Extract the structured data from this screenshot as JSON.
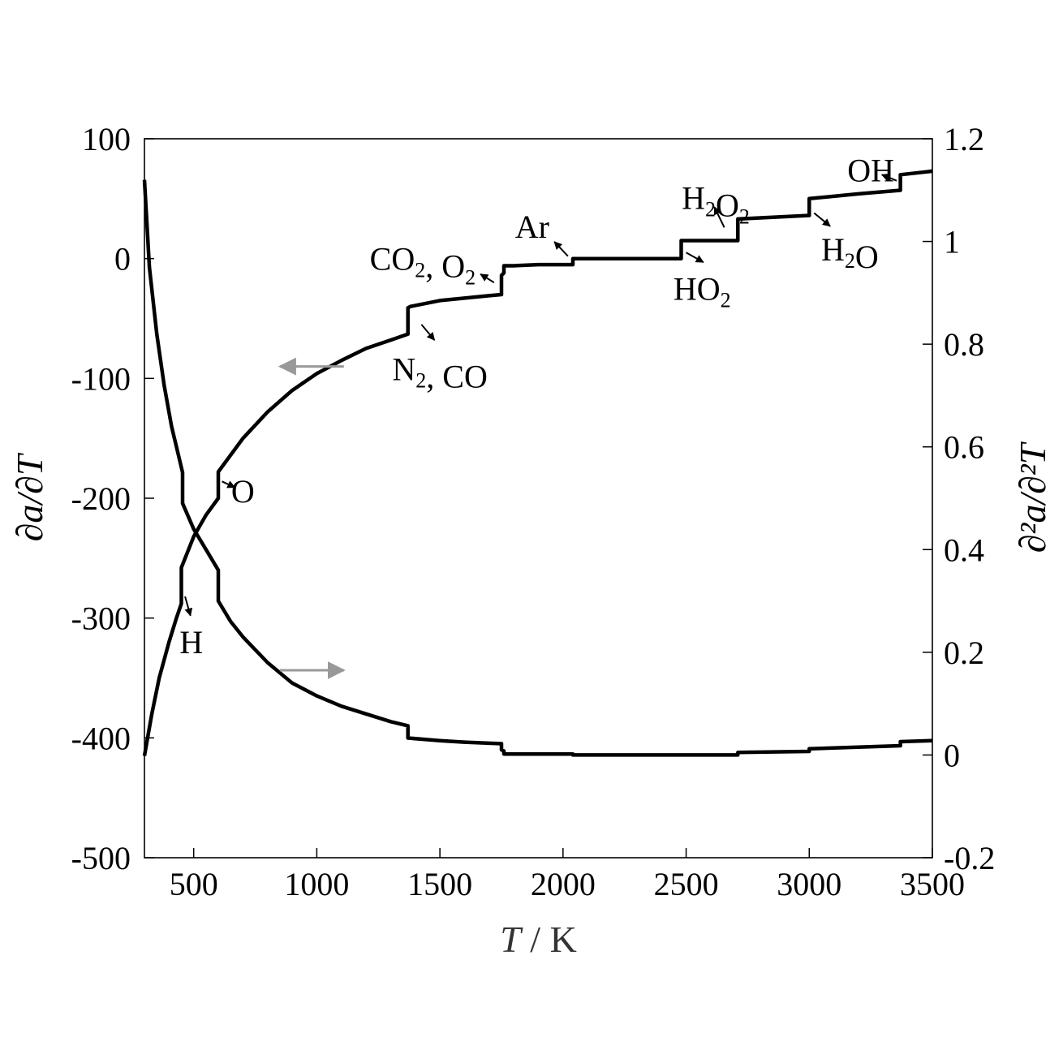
{
  "chart_data": {
    "type": "line",
    "xlabel": "T / K",
    "ylabel_left": "∂a/∂T",
    "ylabel_right": "∂²a/∂²T",
    "xlim": [
      300,
      3500
    ],
    "ylim_left": [
      -500,
      100
    ],
    "ylim_right": [
      -0.2,
      1.2
    ],
    "xticks": [
      "500",
      "1000",
      "1500",
      "2000",
      "2500",
      "3000",
      "3500"
    ],
    "yticks_left": [
      "100",
      "0",
      "-100",
      "-200",
      "-300",
      "-400",
      "-500"
    ],
    "yticks_right": [
      "1.2",
      "1",
      "0.8",
      "0.6",
      "0.4",
      "0.2",
      "0",
      "-0.2"
    ],
    "grid": false,
    "series": [
      {
        "axis": "left",
        "color": "#000000",
        "x": [
          300,
          330,
          360,
          400,
          430,
          450,
          450,
          500,
          550,
          600,
          600,
          700,
          800,
          900,
          1000,
          1100,
          1200,
          1300,
          1370,
          1370,
          1380,
          1500,
          1600,
          1700,
          1750,
          1750,
          1760,
          1760,
          1800,
          1900,
          2000,
          2040,
          2040,
          2200,
          2480,
          2480,
          2710,
          2710,
          3000,
          3000,
          3200,
          3370,
          3370,
          3500
        ],
        "y": [
          -415,
          -380,
          -350,
          -320,
          -300,
          -288,
          -258,
          -232,
          -214,
          -200,
          -178,
          -150,
          -128,
          -110,
          -96,
          -85,
          -75,
          -68,
          -63,
          -41,
          -40,
          -35,
          -33,
          -31,
          -30,
          -14,
          -12,
          -6,
          -6,
          -5,
          -5,
          -5,
          0,
          0,
          0,
          15,
          15,
          33,
          36,
          50,
          54,
          57,
          70,
          73
        ]
      },
      {
        "axis": "right",
        "color": "#000000",
        "x": [
          300,
          320,
          350,
          380,
          410,
          440,
          455,
          455,
          500,
          550,
          600,
          600,
          650,
          700,
          800,
          900,
          1000,
          1100,
          1200,
          1300,
          1370,
          1370,
          1500,
          1600,
          1700,
          1750,
          1750,
          1760,
          1760,
          2040,
          2040,
          2480,
          2710,
          2710,
          3000,
          3000,
          3370,
          3370,
          3500
        ],
        "y": [
          1.12,
          0.95,
          0.82,
          0.72,
          0.64,
          0.58,
          0.55,
          0.49,
          0.44,
          0.4,
          0.36,
          0.3,
          0.26,
          0.23,
          0.18,
          0.14,
          0.115,
          0.095,
          0.08,
          0.065,
          0.057,
          0.033,
          0.028,
          0.025,
          0.023,
          0.022,
          0.01,
          0.008,
          0.002,
          0.002,
          0.0,
          0.0,
          0.0,
          0.005,
          0.007,
          0.012,
          0.018,
          0.026,
          0.028
        ]
      }
    ],
    "direction_arrows": [
      {
        "axis": "left",
        "from": [
          1110,
          -90
        ],
        "to": [
          850,
          -90
        ],
        "color": "#999999"
      },
      {
        "axis": "right",
        "from": [
          850,
          0.165
        ],
        "to": [
          1110,
          0.165
        ],
        "color": "#999999"
      }
    ],
    "annotations": [
      {
        "text": "O",
        "at": [
          700,
          -194
        ],
        "arrow_from": [
          615,
          -186
        ],
        "arrow_to": [
          667,
          -191
        ]
      },
      {
        "text": "H",
        "at": [
          490,
          -320
        ],
        "arrow_from": [
          465,
          -282
        ],
        "arrow_to": [
          487,
          -298
        ]
      },
      {
        "text": "N",
        "sub": "2",
        "tail": ", CO",
        "at": [
          1500,
          -92
        ],
        "arrow_from": [
          1425,
          -55
        ],
        "arrow_to": [
          1478,
          -68
        ]
      },
      {
        "text": "CO",
        "sub": "2",
        "tail": ", O",
        "sub2": "2",
        "at": [
          1430,
          0
        ],
        "arrow_from": [
          1720,
          -20
        ],
        "arrow_to": [
          1665,
          -13
        ]
      },
      {
        "text": "Ar",
        "at": [
          1875,
          27
        ],
        "arrow_from": [
          2020,
          2
        ],
        "arrow_to": [
          1965,
          14
        ]
      },
      {
        "text": "H",
        "sub": "2",
        "tail": "O",
        "sub2": "2",
        "at": [
          2620,
          51
        ],
        "arrow_from": [
          2655,
          26
        ],
        "arrow_to": [
          2615,
          43
        ]
      },
      {
        "text": "HO",
        "sub": "2",
        "at": [
          2565,
          -25
        ],
        "arrow_from": [
          2500,
          5
        ],
        "arrow_to": [
          2570,
          -3
        ]
      },
      {
        "text": "OH",
        "at": [
          3250,
          74
        ],
        "arrow_from": [
          3355,
          65
        ],
        "arrow_to": [
          3295,
          70
        ]
      },
      {
        "text": "H",
        "sub": "2",
        "tail": "O",
        "at": [
          3165,
          8
        ],
        "arrow_from": [
          3020,
          38
        ],
        "arrow_to": [
          3085,
          27
        ]
      }
    ]
  }
}
